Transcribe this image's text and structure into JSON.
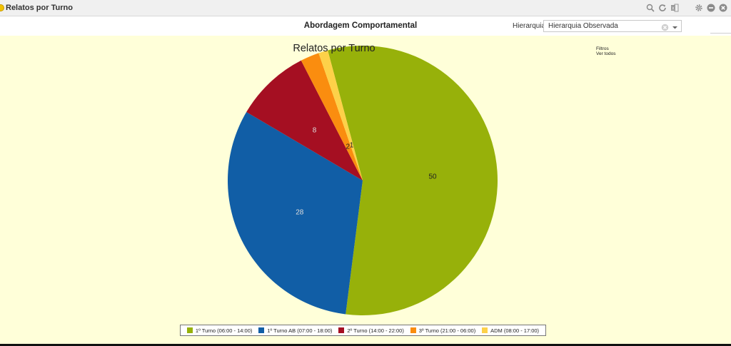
{
  "window": {
    "title": "Relatos por Turno"
  },
  "toolbar_icons": [
    "search-icon",
    "refresh-icon",
    "export-icon",
    "gear-icon",
    "minimize-icon",
    "close-icon"
  ],
  "header": {
    "title": "Abordagem Comportamental",
    "hierarchy_label": "Hierarquia:",
    "hierarchy_value": "Hierarquia Observada"
  },
  "filters": {
    "label": "Filtros",
    "show_all": "Ver todos"
  },
  "colors": {
    "background": "#ffffd9",
    "slice_label": "#222222",
    "slice_label_light": "#dddddd"
  },
  "chart_data": {
    "type": "pie",
    "title": "Relatos por Turno",
    "legend_position": "bottom",
    "slices": [
      {
        "label": "1º Turno (06:00 - 14:00)",
        "value": 50,
        "color": "#97b10a"
      },
      {
        "label": "1º Turno AB (07:00 - 18:00)",
        "value": 28,
        "color": "#115ea6"
      },
      {
        "label": "2º Turno (14:00 - 22:00)",
        "value": 8,
        "color": "#a50f22"
      },
      {
        "label": "3º Turno (21:00 - 06:00)",
        "value": 2,
        "color": "#fa8d0f"
      },
      {
        "label": "ADM (08:00 - 17:00)",
        "value": 1,
        "color": "#fdd149"
      }
    ]
  }
}
